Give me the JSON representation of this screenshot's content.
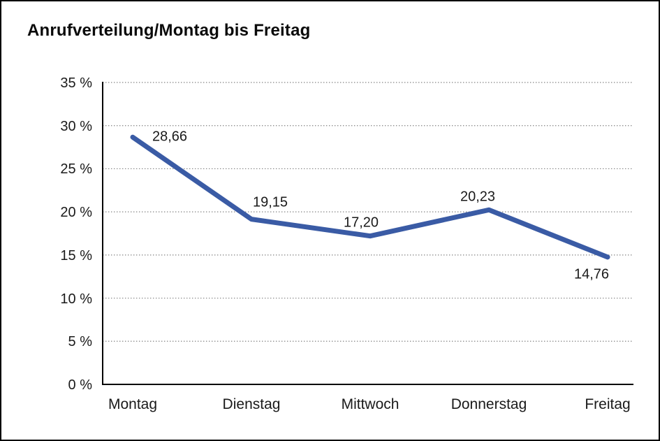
{
  "chart_data": {
    "type": "line",
    "title": "Anrufverteilung/Montag bis Freitag",
    "categories": [
      "Montag",
      "Dienstag",
      "Mittwoch",
      "Donnerstag",
      "Freitag"
    ],
    "series": [
      {
        "name": "Anrufverteilung",
        "values": [
          28.66,
          19.15,
          17.2,
          20.23,
          14.76
        ],
        "data_labels": [
          "28,66",
          "19,15",
          "17,20",
          "20,23",
          "14,76"
        ]
      }
    ],
    "xlabel": "",
    "ylabel": "",
    "ylim": [
      0,
      35
    ],
    "yticks": [
      0,
      5,
      10,
      15,
      20,
      25,
      30,
      35
    ],
    "ytick_labels": [
      "0 %",
      "5 %",
      "10 %",
      "15 %",
      "20 %",
      "25 %",
      "30 %",
      "35 %"
    ],
    "grid": "horizontal-dotted",
    "legend_position": "none",
    "colors": {
      "line": "#3A5BA5",
      "grid": "#808080",
      "axis": "#000000",
      "text": "#1a1a1a",
      "background": "#ffffff",
      "frame_border": "#000000"
    }
  }
}
